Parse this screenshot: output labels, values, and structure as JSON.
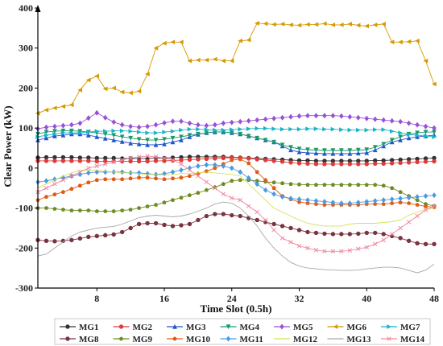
{
  "chart_data": {
    "type": "line",
    "title": "",
    "xlabel": "Time Slot (0.5h)",
    "ylabel": "Clear Power (kW)",
    "xlim": [
      1,
      48
    ],
    "ylim": [
      -300,
      400
    ],
    "xticks": [
      8,
      16,
      24,
      32,
      40,
      48
    ],
    "yticks": [
      -300,
      -200,
      -100,
      0,
      100,
      200,
      300,
      400
    ],
    "x": [
      1,
      2,
      3,
      4,
      5,
      6,
      7,
      8,
      9,
      10,
      11,
      12,
      13,
      14,
      15,
      16,
      17,
      18,
      19,
      20,
      21,
      22,
      23,
      24,
      25,
      26,
      27,
      28,
      29,
      30,
      31,
      32,
      33,
      34,
      35,
      36,
      37,
      38,
      39,
      40,
      41,
      42,
      43,
      44,
      45,
      46,
      47,
      48
    ],
    "legend_position": "bottom",
    "series": [
      {
        "name": "MG1",
        "color": "#333333",
        "marker": "circle",
        "values": [
          26,
          27,
          27,
          27,
          27,
          26,
          26,
          25,
          25,
          25,
          24,
          24,
          24,
          24,
          25,
          25,
          26,
          27,
          28,
          28,
          28,
          28,
          28,
          27,
          26,
          25,
          24,
          23,
          22,
          21,
          20,
          19,
          19,
          18,
          18,
          18,
          18,
          18,
          18,
          18,
          19,
          19,
          20,
          21,
          22,
          23,
          24,
          25
        ]
      },
      {
        "name": "MG2",
        "color": "#e03a3a",
        "marker": "circle",
        "values": [
          18,
          18,
          18,
          18,
          18,
          18,
          18,
          17,
          17,
          17,
          17,
          17,
          17,
          17,
          18,
          18,
          19,
          20,
          21,
          22,
          23,
          24,
          25,
          26,
          25,
          24,
          22,
          20,
          18,
          16,
          14,
          12,
          11,
          10,
          10,
          10,
          10,
          10,
          10,
          10,
          11,
          11,
          12,
          13,
          14,
          15,
          16,
          17
        ]
      },
      {
        "name": "MG3",
        "color": "#2255cc",
        "marker": "triangle-up",
        "values": [
          70,
          75,
          80,
          82,
          85,
          85,
          82,
          78,
          74,
          70,
          66,
          62,
          60,
          58,
          58,
          60,
          65,
          70,
          78,
          84,
          88,
          90,
          90,
          88,
          85,
          80,
          75,
          70,
          65,
          55,
          45,
          40,
          38,
          37,
          36,
          36,
          36,
          36,
          37,
          38,
          45,
          55,
          65,
          70,
          75,
          78,
          80,
          82
        ]
      },
      {
        "name": "MG4",
        "color": "#1a9a6a",
        "marker": "triangle-down",
        "values": [
          85,
          90,
          92,
          93,
          93,
          92,
          90,
          88,
          85,
          82,
          78,
          75,
          72,
          70,
          70,
          72,
          75,
          78,
          82,
          85,
          88,
          90,
          90,
          88,
          85,
          80,
          75,
          70,
          65,
          58,
          52,
          48,
          46,
          45,
          44,
          44,
          44,
          44,
          45,
          46,
          52,
          60,
          70,
          78,
          85,
          88,
          90,
          90
        ]
      },
      {
        "name": "MG5",
        "color": "#9b4fd6",
        "marker": "diamond",
        "values": [
          98,
          102,
          104,
          106,
          108,
          112,
          125,
          138,
          126,
          115,
          108,
          104,
          102,
          104,
          108,
          113,
          117,
          117,
          112,
          108,
          106,
          108,
          112,
          114,
          116,
          118,
          120,
          122,
          124,
          126,
          128,
          130,
          131,
          131,
          131,
          131,
          130,
          128,
          126,
          124,
          122,
          120,
          118,
          116,
          112,
          108,
          104,
          100
        ]
      },
      {
        "name": "MG6",
        "color": "#d69a00",
        "marker": "triangle-left",
        "values": [
          137,
          145,
          150,
          154,
          158,
          195,
          220,
          230,
          198,
          200,
          190,
          188,
          192,
          235,
          300,
          312,
          315,
          315,
          268,
          270,
          270,
          272,
          268,
          268,
          318,
          320,
          362,
          361,
          359,
          360,
          358,
          357,
          359,
          359,
          361,
          358,
          358,
          360,
          357,
          355,
          358,
          360,
          315,
          315,
          316,
          318,
          268,
          210
        ]
      },
      {
        "name": "MG7",
        "color": "#18b4c8",
        "marker": "triangle-right",
        "values": [
          78,
          82,
          85,
          88,
          88,
          88,
          90,
          92,
          92,
          93,
          93,
          92,
          90,
          88,
          88,
          90,
          92,
          95,
          97,
          97,
          96,
          95,
          95,
          96,
          97,
          98,
          99,
          99,
          98,
          97,
          97,
          97,
          98,
          98,
          97,
          97,
          96,
          95,
          95,
          95,
          96,
          96,
          92,
          88,
          84,
          82,
          80,
          78
        ]
      },
      {
        "name": "MG8",
        "color": "#7a3340",
        "marker": "hexagon",
        "values": [
          -180,
          -182,
          -183,
          -182,
          -180,
          -176,
          -172,
          -170,
          -168,
          -166,
          -160,
          -150,
          -140,
          -138,
          -138,
          -142,
          -145,
          -143,
          -140,
          -130,
          -120,
          -115,
          -115,
          -118,
          -120,
          -125,
          -130,
          -135,
          -140,
          -145,
          -150,
          -155,
          -160,
          -162,
          -164,
          -165,
          -165,
          -165,
          -164,
          -162,
          -162,
          -165,
          -170,
          -175,
          -182,
          -188,
          -190,
          -190
        ]
      },
      {
        "name": "MG9",
        "color": "#6e8c20",
        "marker": "star",
        "values": [
          -100,
          -100,
          -102,
          -104,
          -106,
          -106,
          -106,
          -108,
          -108,
          -108,
          -106,
          -104,
          -100,
          -96,
          -92,
          -86,
          -80,
          -74,
          -68,
          -62,
          -55,
          -48,
          -40,
          -32,
          -30,
          -30,
          -32,
          -34,
          -36,
          -38,
          -40,
          -41,
          -42,
          -42,
          -42,
          -42,
          -42,
          -42,
          -42,
          -42,
          -42,
          -44,
          -50,
          -60,
          -70,
          -80,
          -90,
          -95
        ]
      },
      {
        "name": "MG10",
        "color": "#e05a14",
        "marker": "pentagon",
        "values": [
          -80,
          -72,
          -66,
          -60,
          -52,
          -44,
          -36,
          -30,
          -28,
          -28,
          -28,
          -26,
          -24,
          -24,
          -26,
          -28,
          -26,
          -24,
          -20,
          -14,
          -8,
          0,
          10,
          20,
          22,
          12,
          -10,
          -30,
          -50,
          -70,
          -78,
          -85,
          -88,
          -90,
          -92,
          -92,
          -92,
          -92,
          -92,
          -90,
          -90,
          -90,
          -88,
          -86,
          -88,
          -92,
          -96,
          -98
        ]
      },
      {
        "name": "MG11",
        "color": "#4a9ae0",
        "marker": "diamond",
        "values": [
          -35,
          -32,
          -28,
          -24,
          -20,
          -16,
          -12,
          -10,
          -10,
          -10,
          -10,
          -12,
          -12,
          -14,
          -16,
          -14,
          -10,
          -5,
          0,
          5,
          8,
          8,
          5,
          0,
          -10,
          -25,
          -40,
          -55,
          -65,
          -72,
          -76,
          -78,
          -80,
          -82,
          -84,
          -86,
          -88,
          -88,
          -86,
          -84,
          -82,
          -80,
          -78,
          -76,
          -74,
          -72,
          -70,
          -68
        ]
      },
      {
        "name": "MG12",
        "color": "#d8e058",
        "marker": "none",
        "values": [
          -50,
          -40,
          -30,
          -20,
          -12,
          -6,
          -5,
          -5,
          -8,
          -10,
          -12,
          -12,
          -14,
          -16,
          -16,
          -18,
          -16,
          -14,
          -14,
          -12,
          -10,
          -12,
          -14,
          -16,
          -20,
          -40,
          -60,
          -80,
          -100,
          -110,
          -120,
          -130,
          -138,
          -142,
          -145,
          -145,
          -145,
          -140,
          -138,
          -138,
          -138,
          -136,
          -134,
          -130,
          -118,
          -110,
          -104,
          -100
        ]
      },
      {
        "name": "MG13",
        "color": "#a8a8a8",
        "marker": "none",
        "values": [
          -220,
          -215,
          -200,
          -185,
          -170,
          -160,
          -155,
          -150,
          -148,
          -146,
          -140,
          -132,
          -124,
          -120,
          -118,
          -120,
          -122,
          -120,
          -115,
          -108,
          -100,
          -90,
          -85,
          -88,
          -100,
          -120,
          -145,
          -175,
          -200,
          -220,
          -236,
          -245,
          -250,
          -252,
          -254,
          -255,
          -256,
          -256,
          -255,
          -252,
          -250,
          -248,
          -248,
          -250,
          -256,
          -262,
          -255,
          -240
        ]
      },
      {
        "name": "MG14",
        "color": "#f08aa0",
        "marker": "x",
        "values": [
          -60,
          -50,
          -40,
          -30,
          -20,
          -10,
          0,
          5,
          10,
          15,
          20,
          25,
          28,
          30,
          28,
          25,
          20,
          10,
          -5,
          -20,
          -35,
          -50,
          -65,
          -75,
          -80,
          -95,
          -110,
          -130,
          -155,
          -175,
          -185,
          -195,
          -200,
          -205,
          -208,
          -208,
          -208,
          -206,
          -202,
          -198,
          -190,
          -180,
          -165,
          -150,
          -135,
          -120,
          -105,
          -95
        ]
      }
    ]
  }
}
